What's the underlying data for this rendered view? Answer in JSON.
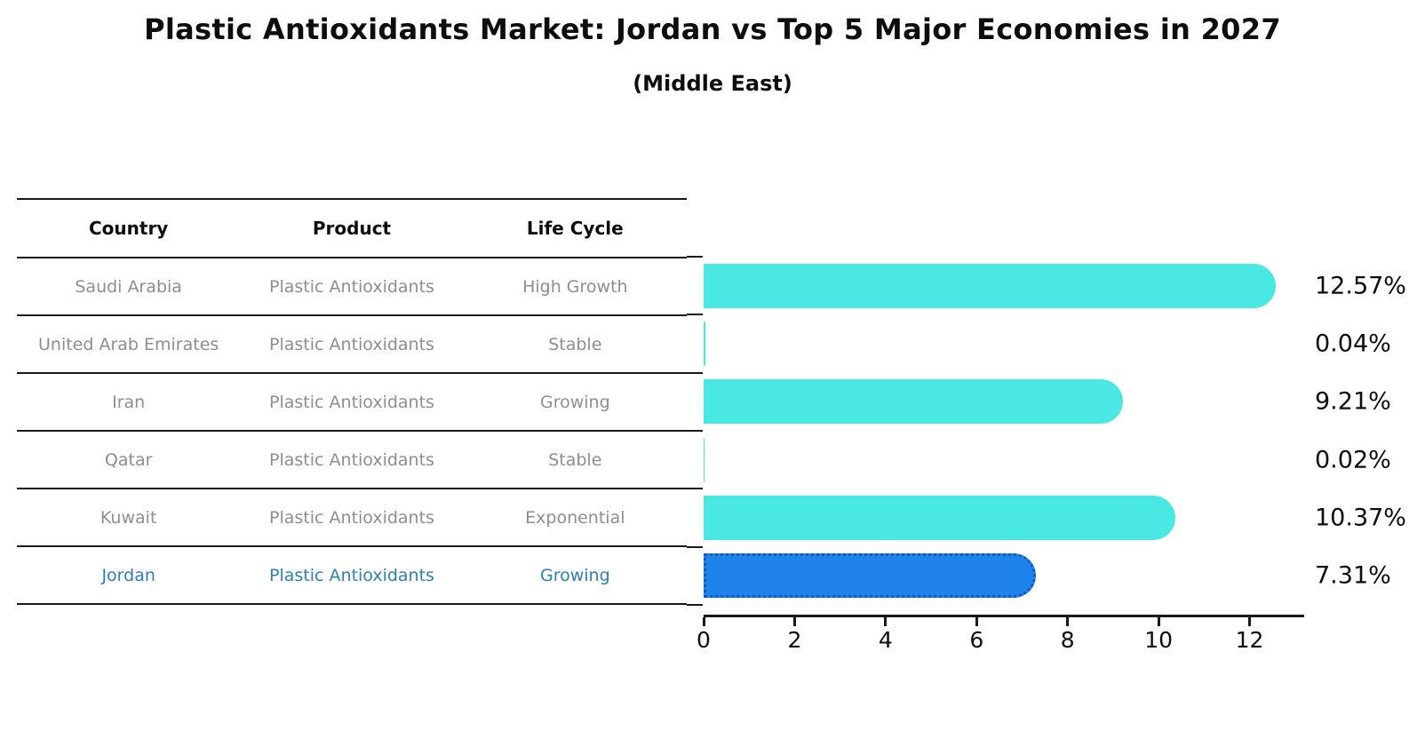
{
  "title": "Plastic Antioxidants Market: Jordan vs Top 5 Major Economies in 2027",
  "subtitle": "(Middle East)",
  "table": {
    "columns": [
      "Country",
      "Product",
      "Life Cycle"
    ],
    "rows": [
      {
        "country": "Saudi Arabia",
        "product": "Plastic Antioxidants",
        "life_cycle": "High Growth",
        "highlight": false
      },
      {
        "country": "United Arab Emirates",
        "product": "Plastic Antioxidants",
        "life_cycle": "Stable",
        "highlight": false
      },
      {
        "country": "Iran",
        "product": "Plastic Antioxidants",
        "life_cycle": "Growing",
        "highlight": false
      },
      {
        "country": "Qatar",
        "product": "Plastic Antioxidants",
        "life_cycle": "Stable",
        "highlight": false
      },
      {
        "country": "Kuwait",
        "product": "Plastic Antioxidants",
        "life_cycle": "Exponential",
        "highlight": false
      },
      {
        "country": "Jordan",
        "product": "Plastic Antioxidants",
        "life_cycle": "Growing",
        "highlight": true
      }
    ]
  },
  "chart_data": {
    "type": "bar",
    "orientation": "horizontal",
    "title": "Plastic Antioxidants Market: Jordan vs Top 5 Major Economies in 2027",
    "subtitle": "(Middle East)",
    "categories": [
      "Saudi Arabia",
      "United Arab Emirates",
      "Iran",
      "Qatar",
      "Kuwait",
      "Jordan"
    ],
    "values": [
      12.57,
      0.04,
      9.21,
      0.02,
      10.37,
      7.31
    ],
    "value_labels": [
      "12.57%",
      "0.04%",
      "9.21%",
      "0.02%",
      "10.37%",
      "7.31%"
    ],
    "highlight_index": 5,
    "xlabel": "",
    "ylabel": "",
    "xlim": [
      0,
      13.2
    ],
    "x_ticks": [
      0,
      2,
      4,
      6,
      8,
      10,
      12
    ],
    "grid": false,
    "legend": false
  },
  "colors": {
    "bar": "#4ae8e3",
    "highlight_bar": "#1e83ea",
    "highlight_border": "#1058c6",
    "highlight_text": "#2e7ebf",
    "axis": "#1a1a1a",
    "label_text": "#0d0d0d",
    "table_text": "#8e8e8e"
  }
}
